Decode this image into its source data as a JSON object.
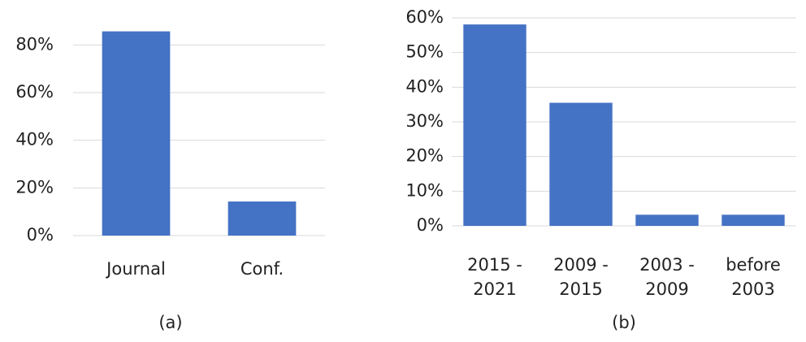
{
  "chart_data": [
    {
      "type": "bar",
      "caption": "(a)",
      "categories": [
        [
          "Journal"
        ],
        [
          "Conf."
        ]
      ],
      "values": [
        85.7,
        14.3
      ],
      "color": "#4472c4",
      "ylim": [
        0,
        90
      ],
      "yticks": [
        {
          "value": 0,
          "label": "0%"
        },
        {
          "value": 20,
          "label": "20%"
        },
        {
          "value": 40,
          "label": "40%"
        },
        {
          "value": 60,
          "label": "60%"
        },
        {
          "value": 80,
          "label": "80%"
        }
      ],
      "grid": true
    },
    {
      "type": "bar",
      "caption": "(b)",
      "categories": [
        [
          "2015 -",
          "2021"
        ],
        [
          "2009 -",
          "2015"
        ],
        [
          "2003 -",
          "2009"
        ],
        [
          "before",
          "2003"
        ]
      ],
      "values": [
        58.1,
        35.5,
        3.2,
        3.2
      ],
      "color": "#4472c4",
      "ylim": [
        0,
        60
      ],
      "yticks": [
        {
          "value": 0,
          "label": "0%"
        },
        {
          "value": 10,
          "label": "10%"
        },
        {
          "value": 20,
          "label": "20%"
        },
        {
          "value": 30,
          "label": "30%"
        },
        {
          "value": 40,
          "label": "40%"
        },
        {
          "value": 50,
          "label": "50%"
        },
        {
          "value": 60,
          "label": "60%"
        }
      ],
      "grid": true
    }
  ]
}
